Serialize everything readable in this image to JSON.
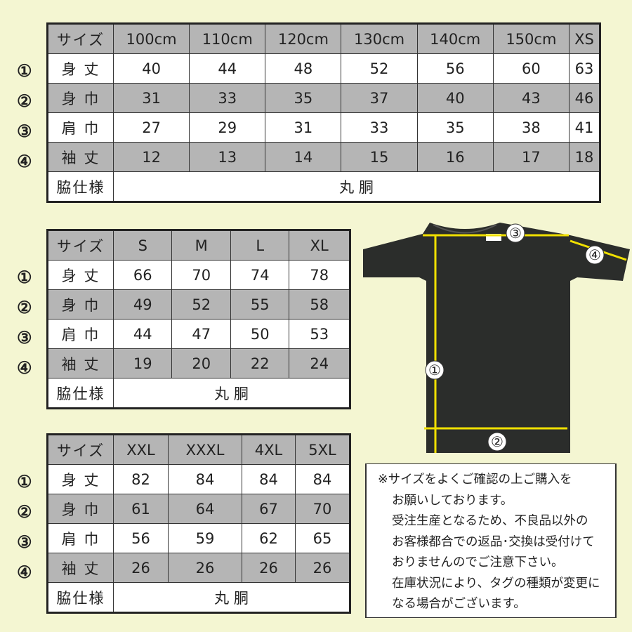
{
  "row_markers": [
    "①",
    "②",
    "③",
    "④"
  ],
  "tables": [
    {
      "header": [
        "サイズ",
        "100cm",
        "110cm",
        "120cm",
        "130cm",
        "140cm",
        "150cm",
        "XS"
      ],
      "rows": [
        [
          "身 丈",
          "40",
          "44",
          "48",
          "52",
          "56",
          "60",
          "63"
        ],
        [
          "身 巾",
          "31",
          "33",
          "35",
          "37",
          "40",
          "43",
          "46"
        ],
        [
          "肩 巾",
          "27",
          "29",
          "31",
          "33",
          "35",
          "38",
          "41"
        ],
        [
          "袖 丈",
          "12",
          "13",
          "14",
          "15",
          "16",
          "17",
          "18"
        ]
      ],
      "side_label": "脇仕様",
      "side_value": "丸 胴"
    },
    {
      "header": [
        "サイズ",
        "S",
        "M",
        "L",
        "XL"
      ],
      "rows": [
        [
          "身 丈",
          "66",
          "70",
          "74",
          "78"
        ],
        [
          "身 巾",
          "49",
          "52",
          "55",
          "58"
        ],
        [
          "肩 巾",
          "44",
          "47",
          "50",
          "53"
        ],
        [
          "袖 丈",
          "19",
          "20",
          "22",
          "24"
        ]
      ],
      "side_label": "脇仕様",
      "side_value": "丸 胴"
    },
    {
      "header": [
        "サイズ",
        "XXL",
        "XXXL",
        "4XL",
        "5XL"
      ],
      "rows": [
        [
          "身 丈",
          "82",
          "84",
          "84",
          "84"
        ],
        [
          "身 巾",
          "61",
          "64",
          "67",
          "70"
        ],
        [
          "肩 巾",
          "56",
          "59",
          "62",
          "65"
        ],
        [
          "袖 丈",
          "26",
          "26",
          "26",
          "26"
        ]
      ],
      "side_label": "脇仕様",
      "side_value": "丸 胴"
    }
  ],
  "diagram": {
    "labels": [
      "①",
      "②",
      "③",
      "④"
    ],
    "shirt_color": "#2b2d2b",
    "arrow_color": "#f0e000"
  },
  "note": {
    "lines": [
      "※サイズをよくご確認の上ご購入を",
      "お願いしております。",
      "受注生産となるため、不良品以外の",
      "お客様都合での返品･交換は受付けて",
      "おりませんのでご注意下さい。",
      "在庫状況により、タグの種類が変更に",
      "なる場合がございます。"
    ]
  },
  "colors": {
    "background": "#f4f6d2",
    "header_gray": "#b5b5b5"
  }
}
